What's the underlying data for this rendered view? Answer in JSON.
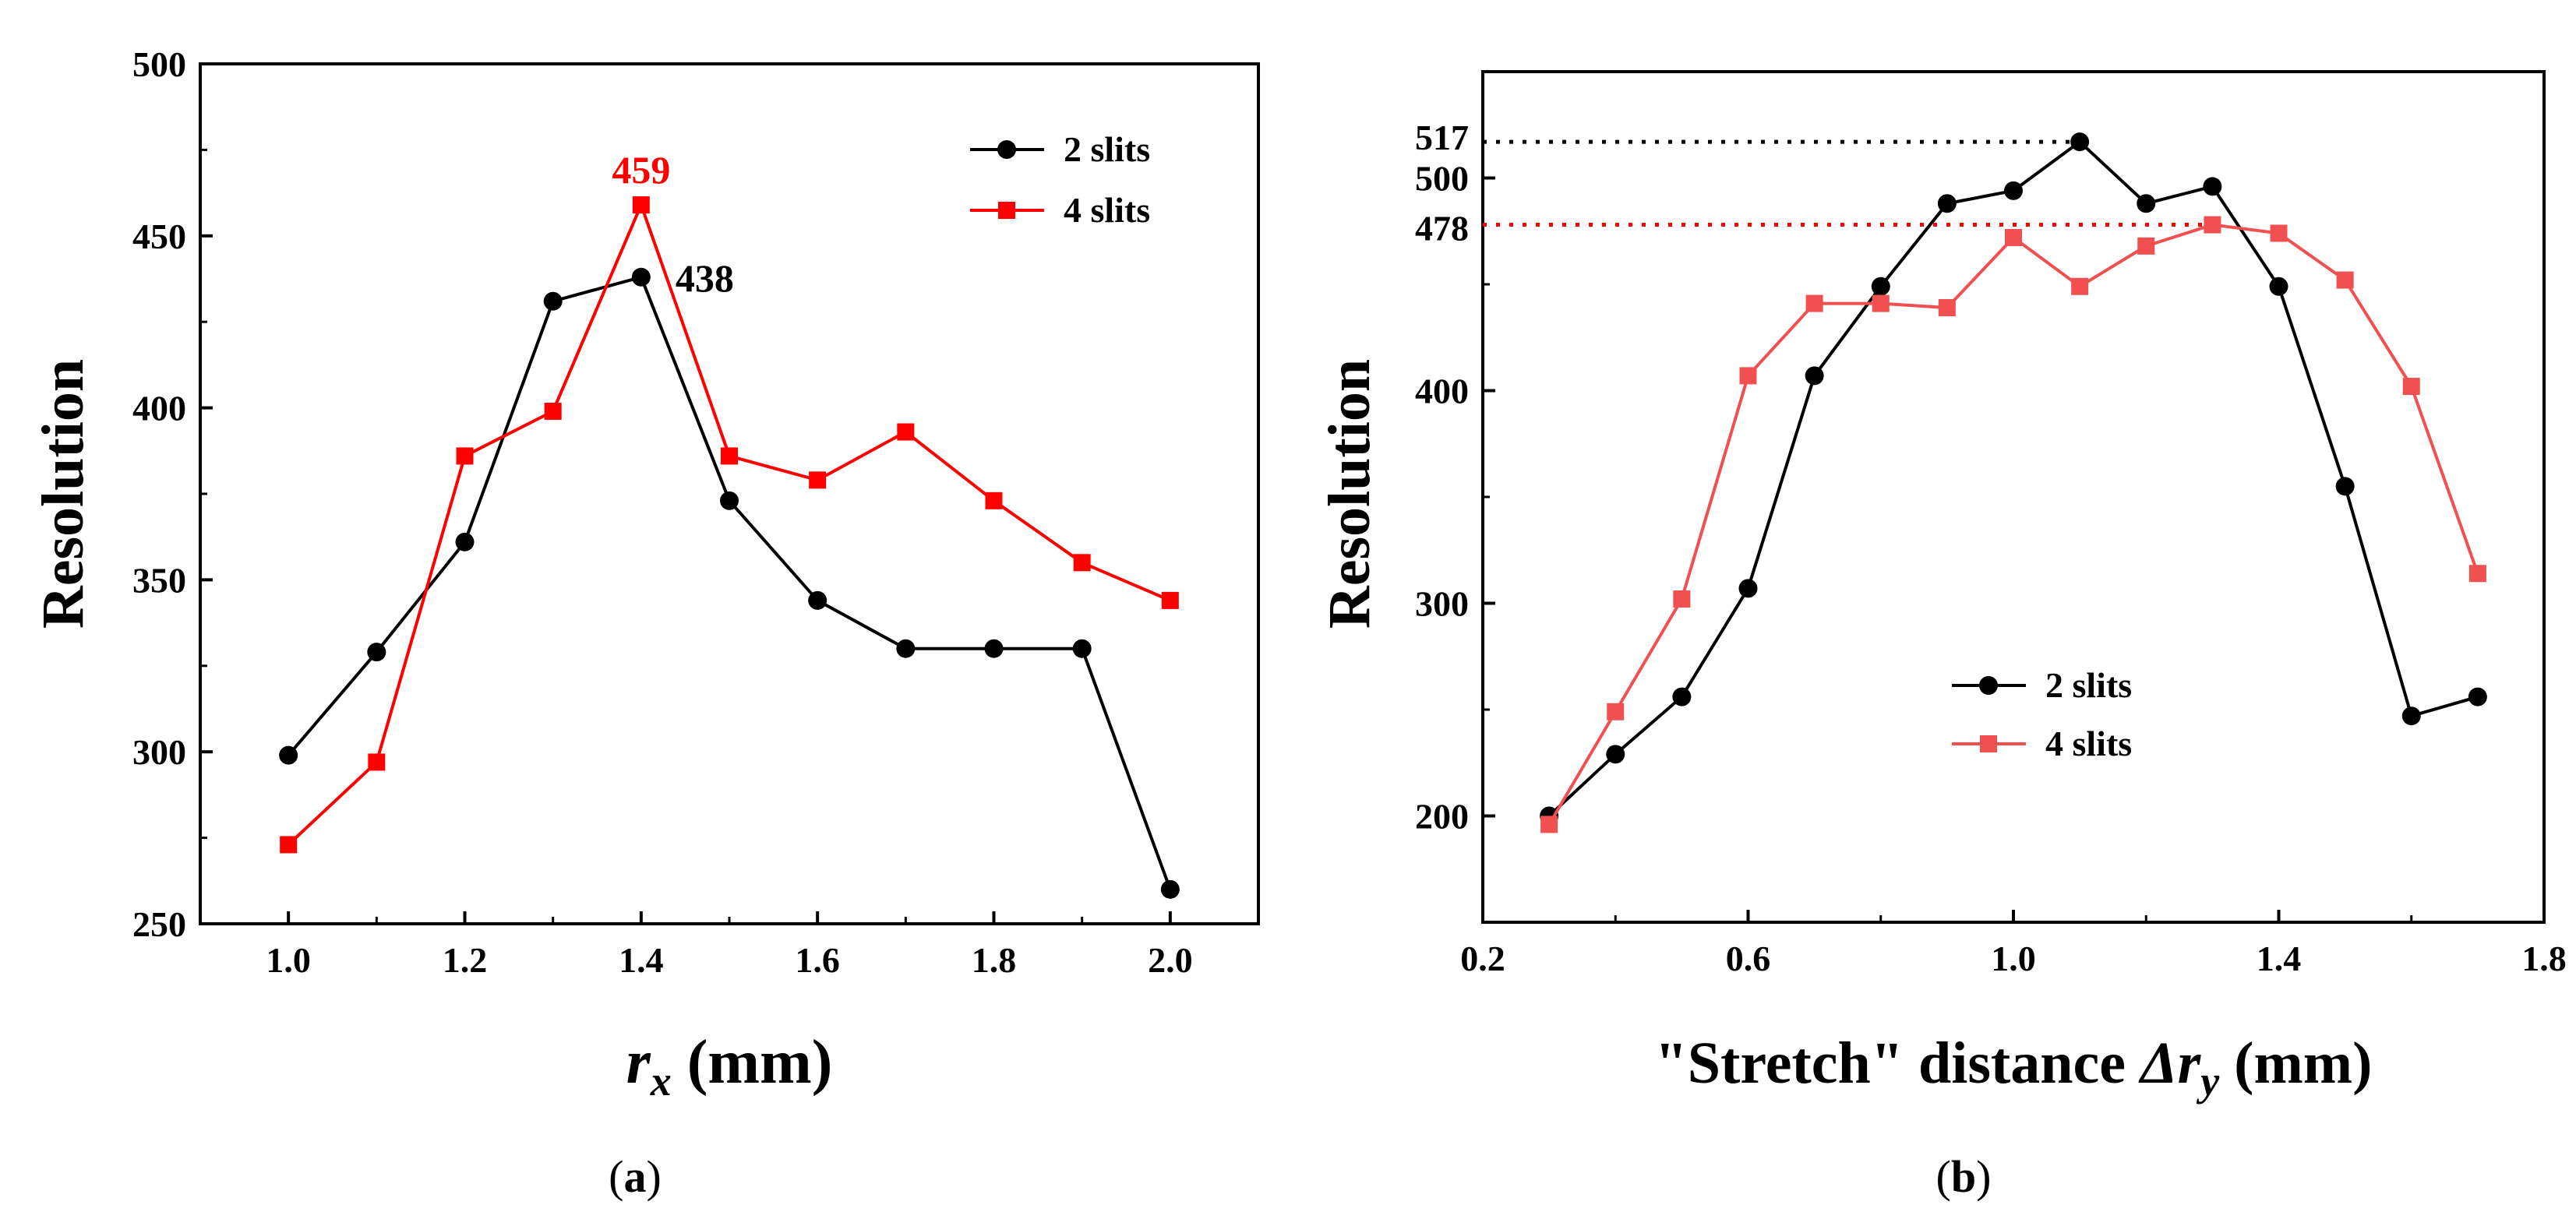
{
  "chart_data": [
    {
      "type": "line",
      "caption_pre": "(",
      "caption_letter": "a",
      "caption_post": ")",
      "xlabel_main": "r",
      "xlabel_sub": "x",
      "xlabel_unit": " (mm)",
      "ylabel": "Resolution",
      "xlim": [
        0.9,
        2.1
      ],
      "ylim": [
        250,
        500
      ],
      "xticks": [
        "1.0",
        "1.2",
        "1.4",
        "1.6",
        "1.8",
        "2.0"
      ],
      "yticks": [
        "250",
        "300",
        "350",
        "400",
        "450",
        "500"
      ],
      "legend_position": "top-right",
      "series": [
        {
          "name": "2 slits",
          "color": "#000000",
          "marker": "circle",
          "x": [
            1.0,
            1.1,
            1.2,
            1.3,
            1.4,
            1.5,
            1.6,
            1.7,
            1.8,
            1.9,
            2.0
          ],
          "y": [
            299,
            329,
            361,
            431,
            438,
            373,
            344,
            330,
            330,
            330,
            260
          ]
        },
        {
          "name": "4 slits",
          "color": "#ff0000",
          "marker": "square",
          "x": [
            1.0,
            1.1,
            1.2,
            1.3,
            1.4,
            1.5,
            1.6,
            1.7,
            1.8,
            1.9,
            2.0
          ],
          "y": [
            273,
            297,
            386,
            399,
            459,
            386,
            379,
            393,
            373,
            355,
            344
          ]
        }
      ],
      "annotations": [
        {
          "text": "459",
          "color": "#ff0000",
          "x": 1.4,
          "y": 459
        },
        {
          "text": "438",
          "color": "#000000",
          "x": 1.4,
          "y": 438
        }
      ]
    },
    {
      "type": "line",
      "caption_pre": "(",
      "caption_letter": "b",
      "caption_post": ")",
      "xlabel_pre": "\"Stretch\" distance ",
      "xlabel_main": "Δr",
      "xlabel_sub": "y",
      "xlabel_unit": " (mm)",
      "ylabel": "Resolution",
      "xlim": [
        0.2,
        1.8
      ],
      "ylim": [
        150,
        550
      ],
      "xticks": [
        "0.2",
        "0.6",
        "1.0",
        "1.4",
        "1.8"
      ],
      "yticks": [
        "200",
        "300",
        "400",
        "500"
      ],
      "extra_yticks": [
        {
          "label": "517",
          "value": 517,
          "color": "#000000"
        },
        {
          "label": "478",
          "value": 478,
          "color": "#ff0000"
        }
      ],
      "legend_position": "bottom-center",
      "series": [
        {
          "name": "2 slits",
          "color": "#000000",
          "marker": "circle",
          "x": [
            0.3,
            0.4,
            0.5,
            0.6,
            0.7,
            0.8,
            0.9,
            1.0,
            1.1,
            1.2,
            1.3,
            1.4,
            1.5,
            1.6,
            1.7
          ],
          "y": [
            200,
            229,
            256,
            307,
            407,
            449,
            488,
            494,
            517,
            488,
            496,
            449,
            355,
            247,
            256
          ]
        },
        {
          "name": "4 slits",
          "color": "#f05050",
          "marker": "square",
          "x": [
            0.3,
            0.4,
            0.5,
            0.6,
            0.7,
            0.8,
            0.9,
            1.0,
            1.1,
            1.2,
            1.3,
            1.4,
            1.5,
            1.6,
            1.7
          ],
          "y": [
            196,
            249,
            302,
            407,
            441,
            441,
            439,
            472,
            449,
            468,
            478,
            474,
            452,
            402,
            314
          ]
        }
      ]
    }
  ]
}
